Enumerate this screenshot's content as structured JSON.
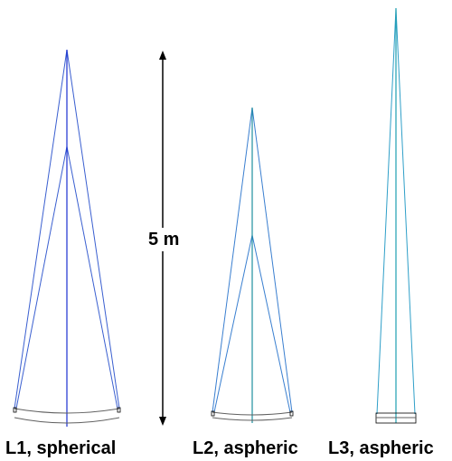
{
  "scale_bar": {
    "label": "5 m"
  },
  "lenses": [
    {
      "label": "L1, spherical"
    },
    {
      "label": "L2, aspheric"
    },
    {
      "label": "L3, aspheric"
    }
  ],
  "colors": {
    "ray_l1": "#3a5fd0",
    "axis_l1": "#1a2fd0",
    "ray_l2": "#3a7fd0",
    "axis_l2": "#1f8f9f",
    "ray_l3": "#2f9fc8",
    "axis_l3": "#1f9fb0",
    "lens_outline": "#606060",
    "arrow": "#000000"
  }
}
